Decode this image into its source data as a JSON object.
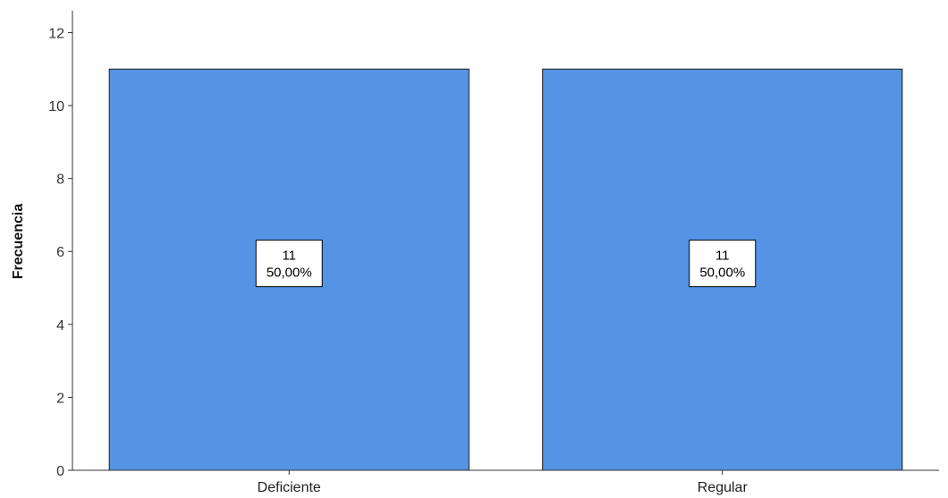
{
  "chart_data": {
    "type": "bar",
    "categories": [
      "Deficiente",
      "Regular"
    ],
    "values": [
      11,
      11
    ],
    "data_labels": [
      {
        "count": "11",
        "percent": "50,00%"
      },
      {
        "count": "11",
        "percent": "50,00%"
      }
    ],
    "title": "",
    "xlabel": "",
    "ylabel": "Frecuencia",
    "ylim": [
      0,
      12.6
    ],
    "yticks": [
      0,
      2,
      4,
      6,
      8,
      10,
      12
    ],
    "grid": false,
    "legend": "none",
    "bar_color": "#5594e4",
    "bar_edge_color": "#1a1a1a"
  }
}
